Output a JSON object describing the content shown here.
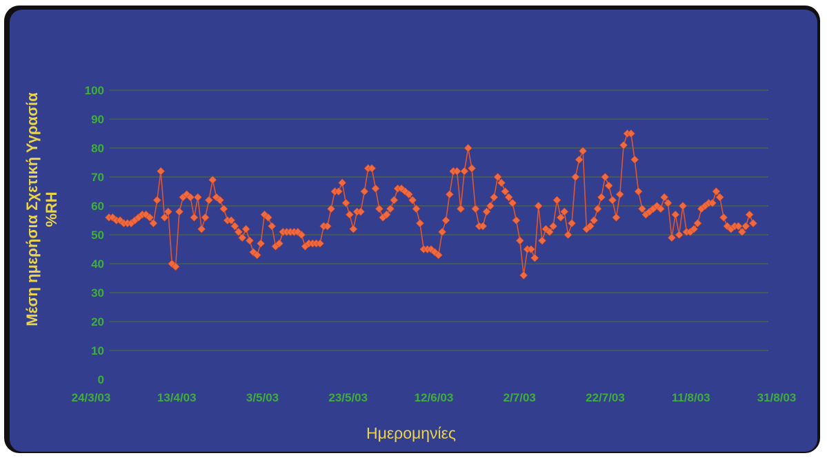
{
  "chart_data": {
    "type": "line",
    "title": "",
    "ylabel": "Μέση ημερήσια Σχετική Υγρασία",
    "ylabel_unit": "%RH",
    "xlabel": "Ημερομηνίες",
    "ylim": [
      0,
      100
    ],
    "yticks": [
      "0",
      "10",
      "20",
      "30",
      "40",
      "50",
      "60",
      "70",
      "80",
      "90",
      "100"
    ],
    "xticks": [
      "24/3/03",
      "13/4/03",
      "3/5/03",
      "23/5/03",
      "12/6/03",
      "2/7/03",
      "22/7/03",
      "11/8/03",
      "31/8/03"
    ],
    "x_start": "24/3/03",
    "x_end": "31/8/03",
    "grid": true,
    "colors": {
      "background": "#333f8e",
      "line": "#e1552f",
      "marker": "#f06a3f",
      "axis_text": "#3fae3b",
      "title_text": "#e9d44a",
      "gridline": "#4f6a3c"
    },
    "series": [
      {
        "marker": "diamond",
        "values": [
          56,
          56,
          55,
          55,
          54,
          54,
          54,
          55,
          56,
          57,
          57,
          56,
          54,
          62,
          72,
          56,
          58,
          40,
          39,
          58,
          63,
          64,
          63,
          56,
          63,
          52,
          56,
          62,
          69,
          63,
          62,
          59,
          55,
          55,
          53,
          51,
          49,
          52,
          48,
          44,
          43,
          47,
          57,
          56,
          53,
          46,
          47,
          51,
          51,
          51,
          51,
          51,
          50,
          46,
          47,
          47,
          47,
          47,
          53,
          53,
          59,
          65,
          65,
          68,
          61,
          57,
          52,
          58,
          58,
          65,
          73,
          73,
          66,
          59,
          56,
          57,
          59,
          62,
          66,
          66,
          65,
          64,
          62,
          59,
          54,
          45,
          45,
          45,
          44,
          43,
          51,
          55,
          64,
          72,
          72,
          59,
          72,
          80,
          73,
          59,
          53,
          53,
          58,
          60,
          63,
          70,
          68,
          65,
          63,
          61,
          55,
          48,
          36,
          45,
          45,
          42,
          60,
          48,
          52,
          51,
          53,
          62,
          56,
          58,
          50,
          54,
          70,
          76,
          79,
          52,
          53,
          55,
          59,
          63,
          70,
          67,
          62,
          56,
          64,
          81,
          85,
          85,
          76,
          65,
          59,
          57,
          58,
          59,
          60,
          59,
          63,
          61,
          49,
          57,
          50,
          60,
          51,
          51,
          52,
          54,
          59,
          60,
          61,
          61,
          65,
          63,
          56,
          53,
          52,
          53,
          53,
          51,
          53,
          57,
          54
        ]
      }
    ]
  }
}
